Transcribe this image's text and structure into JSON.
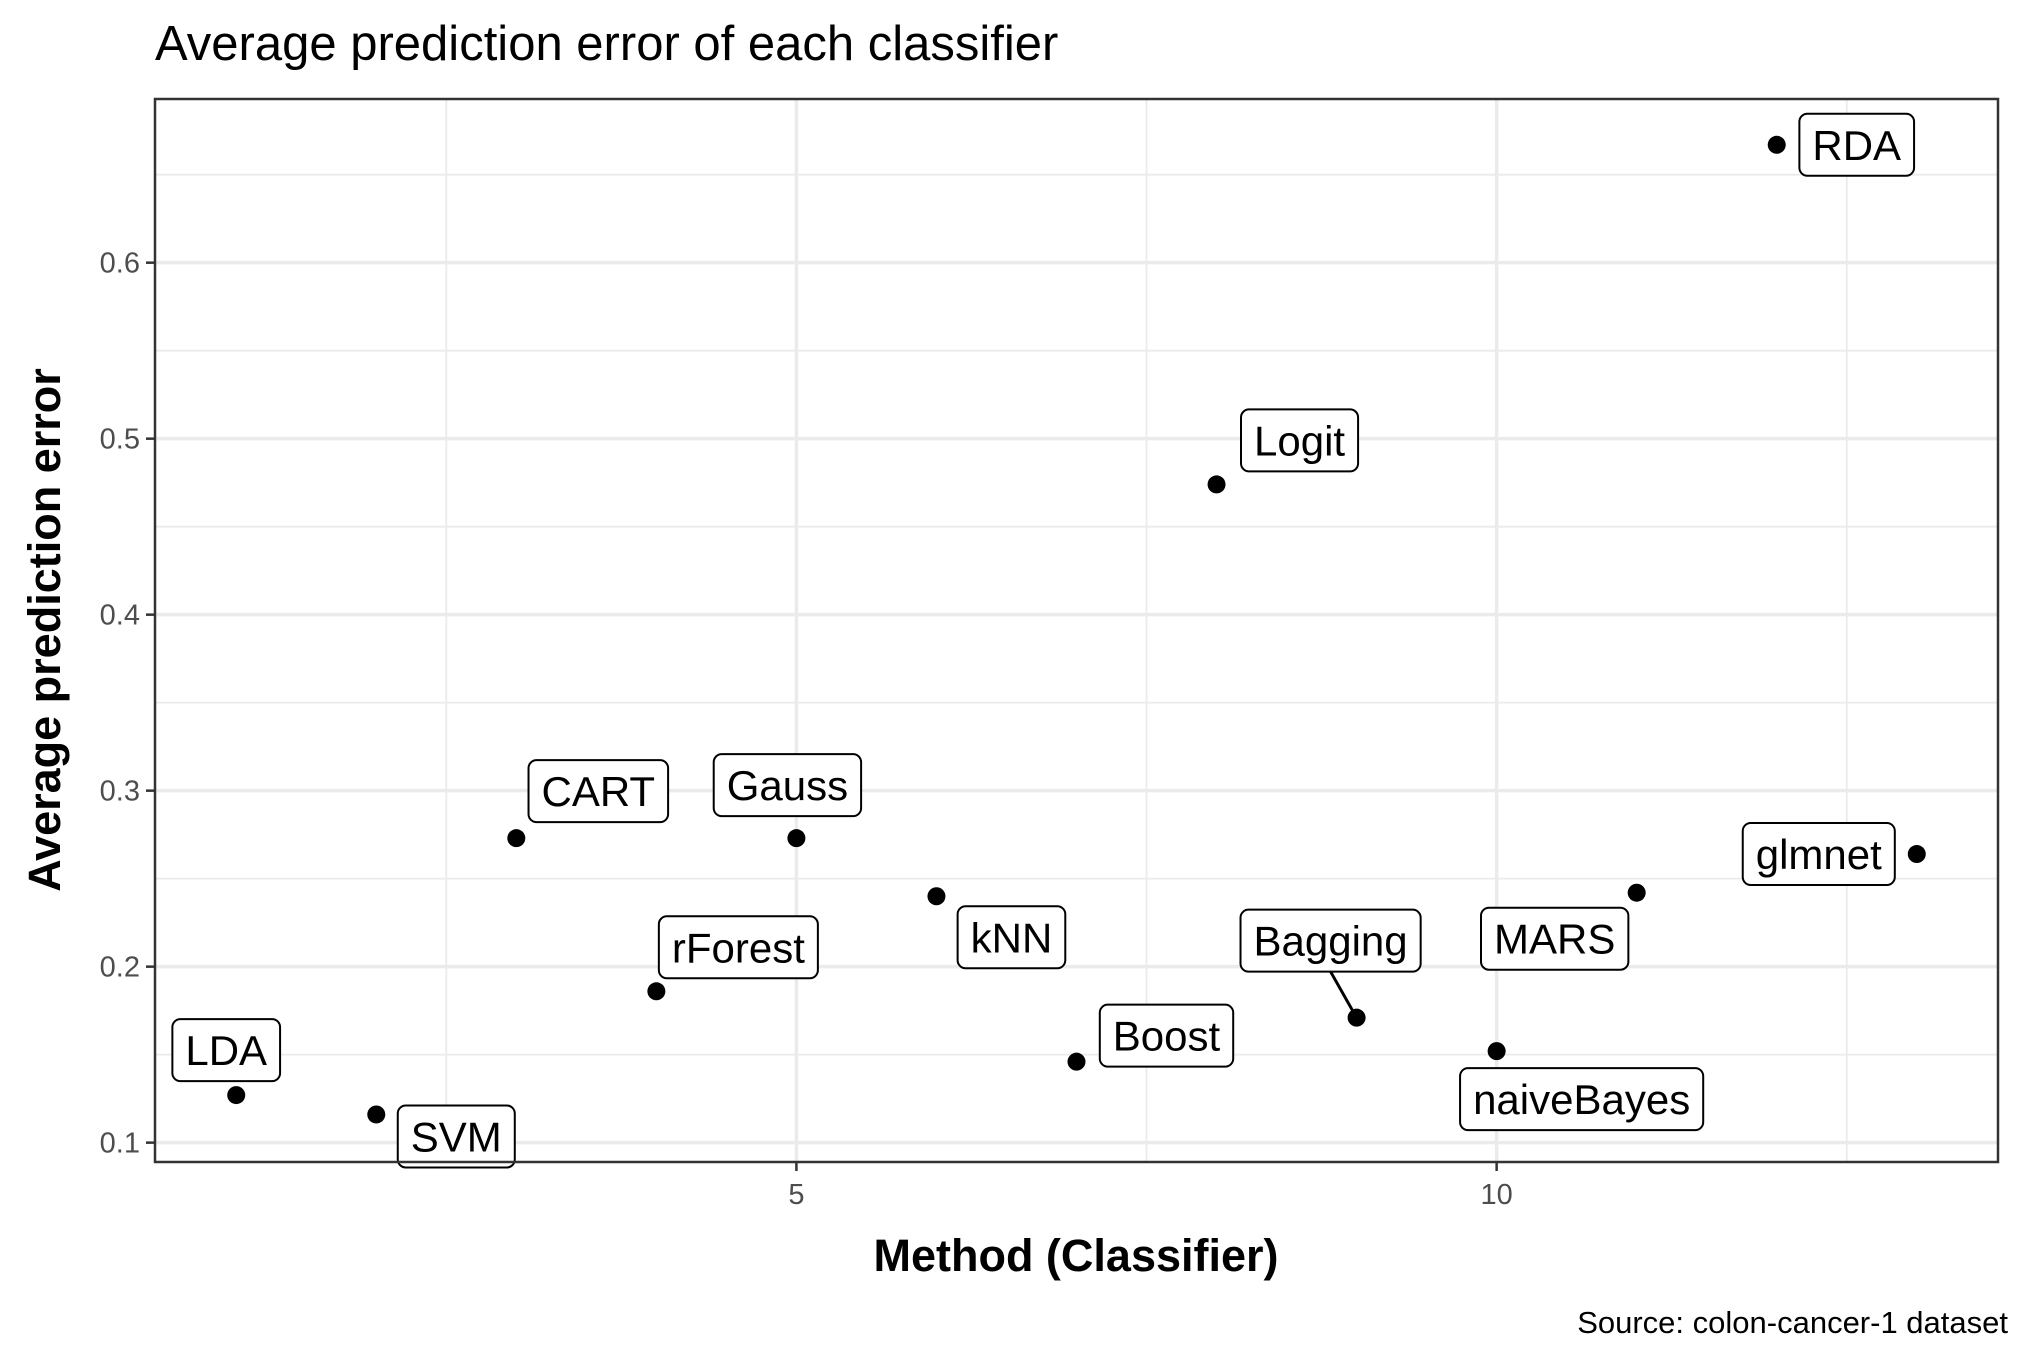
{
  "chart_data": {
    "type": "scatter",
    "title": "Average prediction error of each classifier",
    "xlabel": "Method (Classifier)",
    "ylabel": "Average prediction error",
    "caption": "Source: colon-cancer-1 dataset",
    "xlim": [
      0.42,
      13.58
    ],
    "ylim": [
      0.089,
      0.693
    ],
    "x_ticks": [
      5,
      10
    ],
    "y_ticks": [
      0.1,
      0.2,
      0.3,
      0.4,
      0.5,
      0.6
    ],
    "grid": true,
    "point_color": "#000000",
    "points": [
      {
        "x": 1,
        "y": 0.127,
        "label": "LDA"
      },
      {
        "x": 2,
        "y": 0.116,
        "label": "SVM"
      },
      {
        "x": 3,
        "y": 0.273,
        "label": "CART"
      },
      {
        "x": 4,
        "y": 0.186,
        "label": "rForest"
      },
      {
        "x": 5,
        "y": 0.273,
        "label": "Gauss"
      },
      {
        "x": 6,
        "y": 0.24,
        "label": "kNN"
      },
      {
        "x": 7,
        "y": 0.146,
        "label": "Boost"
      },
      {
        "x": 8,
        "y": 0.474,
        "label": "Logit"
      },
      {
        "x": 9,
        "y": 0.171,
        "label": "Bagging"
      },
      {
        "x": 10,
        "y": 0.152,
        "label": "naiveBayes"
      },
      {
        "x": 11,
        "y": 0.242,
        "label": "MARS"
      },
      {
        "x": 12,
        "y": 0.667,
        "label": "RDA"
      },
      {
        "x": 13,
        "y": 0.264,
        "label": "glmnet"
      }
    ]
  }
}
